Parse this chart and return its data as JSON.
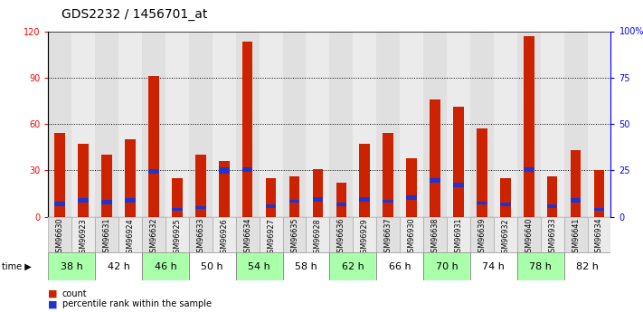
{
  "title": "GDS2232 / 1456701_at",
  "samples": [
    "GSM96630",
    "GSM96923",
    "GSM96631",
    "GSM96924",
    "GSM96632",
    "GSM96925",
    "GSM96633",
    "GSM96926",
    "GSM96634",
    "GSM96927",
    "GSM96635",
    "GSM96928",
    "GSM96636",
    "GSM96929",
    "GSM96637",
    "GSM96930",
    "GSM96638",
    "GSM96931",
    "GSM96639",
    "GSM96932",
    "GSM96640",
    "GSM96933",
    "GSM96641",
    "GSM96934"
  ],
  "time_labels": [
    "38 h",
    "42 h",
    "46 h",
    "50 h",
    "54 h",
    "58 h",
    "62 h",
    "66 h",
    "70 h",
    "74 h",
    "78 h",
    "82 h"
  ],
  "count_values": [
    54,
    47,
    40,
    50,
    91,
    25,
    40,
    36,
    113,
    25,
    26,
    31,
    22,
    47,
    54,
    38,
    76,
    71,
    57,
    25,
    117,
    26,
    43,
    30
  ],
  "blue_bottom": [
    7,
    9,
    8,
    9,
    28,
    4,
    5,
    28,
    29,
    6,
    9,
    10,
    7,
    10,
    9,
    11,
    22,
    19,
    8,
    7,
    29,
    6,
    9,
    4
  ],
  "blue_height": [
    3,
    3,
    3,
    3,
    3,
    2,
    2,
    4,
    3,
    2,
    2,
    3,
    2,
    3,
    2,
    3,
    3,
    3,
    2,
    2,
    3,
    2,
    3,
    2
  ],
  "bar_color": "#cc2200",
  "blue_color": "#2233cc",
  "bg_even": "#e0e0e0",
  "bg_odd": "#ebebeb",
  "time_even": "#aaffaa",
  "time_odd": "#ffffff",
  "ylim_left": [
    0,
    120
  ],
  "yticks_left": [
    0,
    30,
    60,
    90,
    120
  ],
  "yticks_right": [
    0,
    25,
    50,
    75,
    100
  ],
  "right_labels": [
    "0",
    "25",
    "50",
    "75",
    "100%"
  ],
  "bar_width": 0.45
}
